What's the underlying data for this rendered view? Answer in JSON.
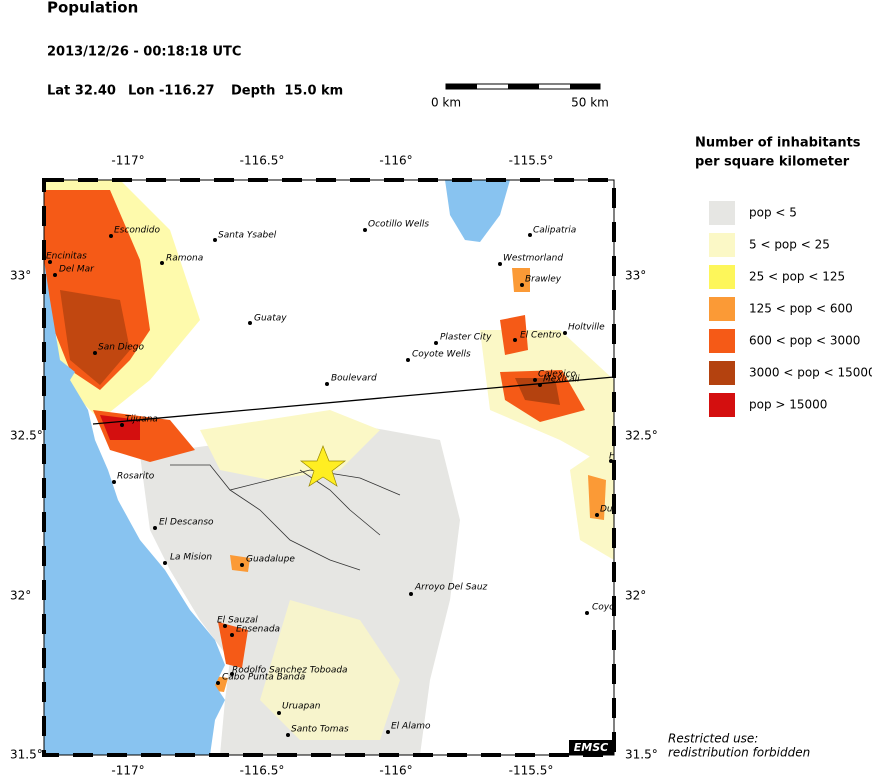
{
  "header": {
    "title": "Population",
    "datetime": "2013/12/26 - 00:18:18 UTC",
    "lat": "Lat 32.40",
    "lon": "Lon -116.27",
    "depth": "Depth  15.0 km"
  },
  "scale_bar": {
    "start": "0 km",
    "end": "50 km"
  },
  "legend": {
    "title": [
      "Number of inhabitants",
      "per square kilometer"
    ],
    "items": [
      {
        "label": "pop < 5",
        "color": "#e6e6e3"
      },
      {
        "label": "5 < pop < 25",
        "color": "#fbf8c6"
      },
      {
        "label": "25 < pop < 125",
        "color": "#fdf65a"
      },
      {
        "label": "125 < pop < 600",
        "color": "#fb9a36"
      },
      {
        "label": "600 < pop < 3000",
        "color": "#f55a17"
      },
      {
        "label": "3000 < pop < 15000",
        "color": "#b4420f"
      },
      {
        "label": "pop > 15000",
        "color": "#d40f0f"
      }
    ]
  },
  "map": {
    "lon_ticks": [
      "-117°",
      "-116.5°",
      "-116°",
      "-115.5°"
    ],
    "lat_ticks": [
      "33°",
      "32.5°",
      "32°",
      "31.5°"
    ],
    "places": [
      "Escondido",
      "Santa Ysabel",
      "Ocotillo Wells",
      "Calipatria",
      "Encinitas",
      "Del Mar",
      "Ramona",
      "Westmorland",
      "Brawley",
      "Guatay",
      "Holtville",
      "Plaster City",
      "El Centro",
      "San Diego",
      "Coyote Wells",
      "Calexico",
      "Mexicali",
      "Boulevard",
      "Tijuana",
      "Rosarito",
      "El Descanso",
      "La Mision",
      "Guadalupe",
      "Arroyo Del Sauz",
      "Coyo",
      "El Sauzal",
      "Ensenada",
      "Rodolfo Sanchez Toboada",
      "Cabo Punta Banda",
      "Uruapan",
      "El Alamo",
      "Santo Tomas",
      "Du",
      "H"
    ],
    "logo": "EMSC"
  },
  "footer": [
    "Restricted use:",
    "redistribution forbidden"
  ]
}
